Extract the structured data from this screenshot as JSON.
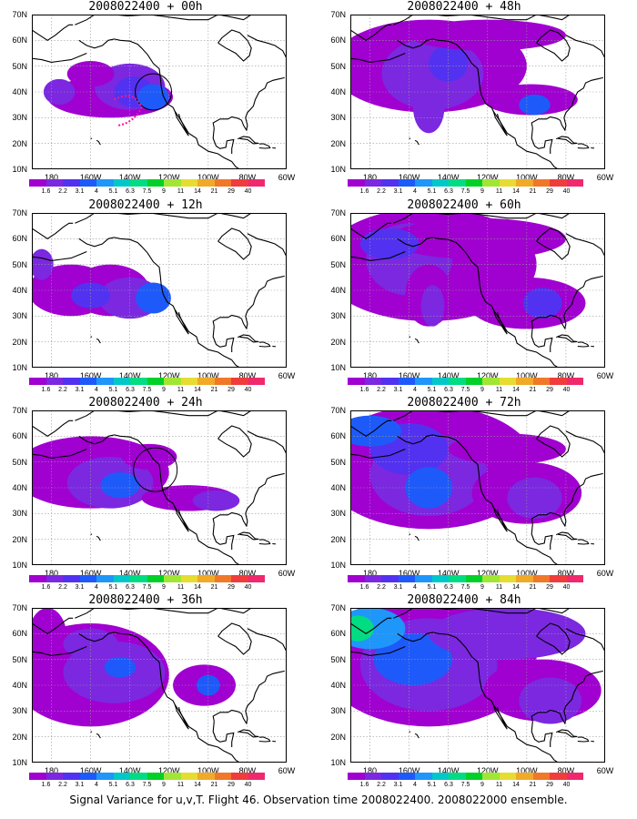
{
  "panels": [
    {
      "title": "2008022400 + 00h",
      "level": 0
    },
    {
      "title": "2008022400 + 12h",
      "level": 1
    },
    {
      "title": "2008022400 + 24h",
      "level": 2
    },
    {
      "title": "2008022400 + 36h",
      "level": 3
    },
    {
      "title": "2008022400 + 48h",
      "level": 4
    },
    {
      "title": "2008022400 + 60h",
      "level": 5
    },
    {
      "title": "2008022400 + 72h",
      "level": 6
    },
    {
      "title": "2008022400 + 84h",
      "level": 7
    }
  ],
  "lat_labels": [
    "70N",
    "60N",
    "50N",
    "40N",
    "30N",
    "20N",
    "10N"
  ],
  "lon_labels": [
    "180",
    "160W",
    "140W",
    "120W",
    "100W",
    "80W",
    "60W"
  ],
  "colorbar": {
    "labels": [
      "1.6",
      "2.2",
      "3.1",
      "4",
      "5.1",
      "6.3",
      "7.5",
      "9",
      "11",
      "14",
      "21",
      "29",
      "40"
    ],
    "colors": [
      "#a000d0",
      "#7b28e0",
      "#5232f0",
      "#1e5afa",
      "#1e96fa",
      "#00c8c8",
      "#00dc82",
      "#00d028",
      "#a0e632",
      "#e6dc32",
      "#f0aa28",
      "#f07828",
      "#f03c3c",
      "#f0286e"
    ]
  },
  "caption": "Signal Variance for u,v,T. Flight 46. Observation time 2008022400. 2008022000 ensemble."
}
